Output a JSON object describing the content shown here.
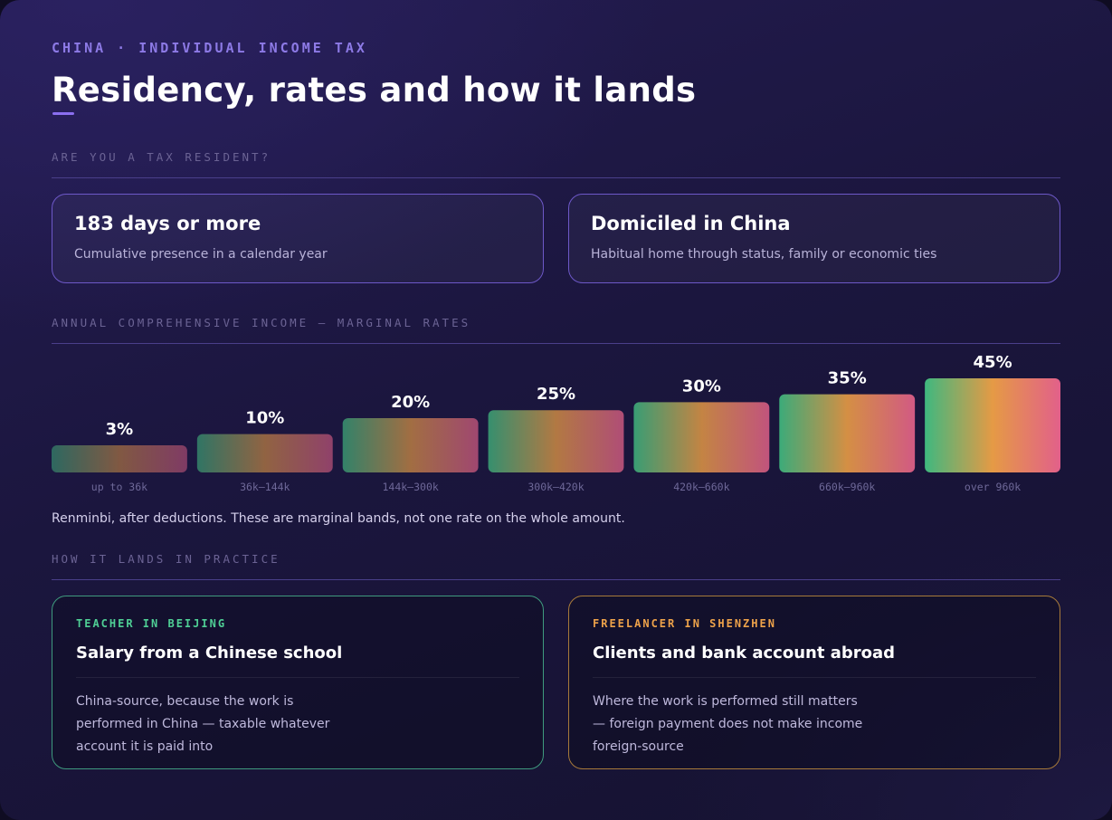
{
  "header": {
    "eyebrow": "CHINA · INDIVIDUAL INCOME TAX",
    "title": "Residency, rates and how it lands"
  },
  "residency": {
    "section_label": "ARE YOU A TAX RESIDENT?",
    "cards": [
      {
        "heading": "183 days or more",
        "text": "Cumulative presence in a calendar year"
      },
      {
        "heading": "Domiciled in China",
        "text": "Habitual home through status, family or economic ties"
      }
    ]
  },
  "rates": {
    "section_label": "ANNUAL COMPREHENSIVE INCOME — MARGINAL RATES",
    "note": "Renminbi, after deductions. These are marginal bands, not one rate on the whole amount."
  },
  "chart_data": {
    "type": "bar",
    "categories": [
      "up to 36k",
      "36k–144k",
      "144k–300k",
      "300k–420k",
      "420k–660k",
      "660k–960k",
      "over 960k"
    ],
    "values": [
      3,
      10,
      20,
      25,
      30,
      35,
      45
    ],
    "value_labels": [
      "3%",
      "10%",
      "20%",
      "25%",
      "30%",
      "35%",
      "45%"
    ],
    "unit": "%",
    "ylim": [
      0,
      45
    ],
    "grid": false,
    "colors": {
      "start": "#3fb87f",
      "mid": "#e59a45",
      "end": "#e2608a"
    }
  },
  "practice": {
    "section_label": "HOW IT LANDS IN PRACTICE",
    "cases": [
      {
        "tag": "TEACHER IN BEIJING",
        "heading": "Salary from a Chinese school",
        "text": "China-source, because the work is performed in China — taxable whatever account it is paid into",
        "color": "#4fcf95"
      },
      {
        "tag": "FREELANCER IN SHENZHEN",
        "heading": "Clients and bank account abroad",
        "text": "Where the work is performed still matters — foreign payment does not make income foreign-source",
        "color": "#eda24a"
      }
    ]
  }
}
